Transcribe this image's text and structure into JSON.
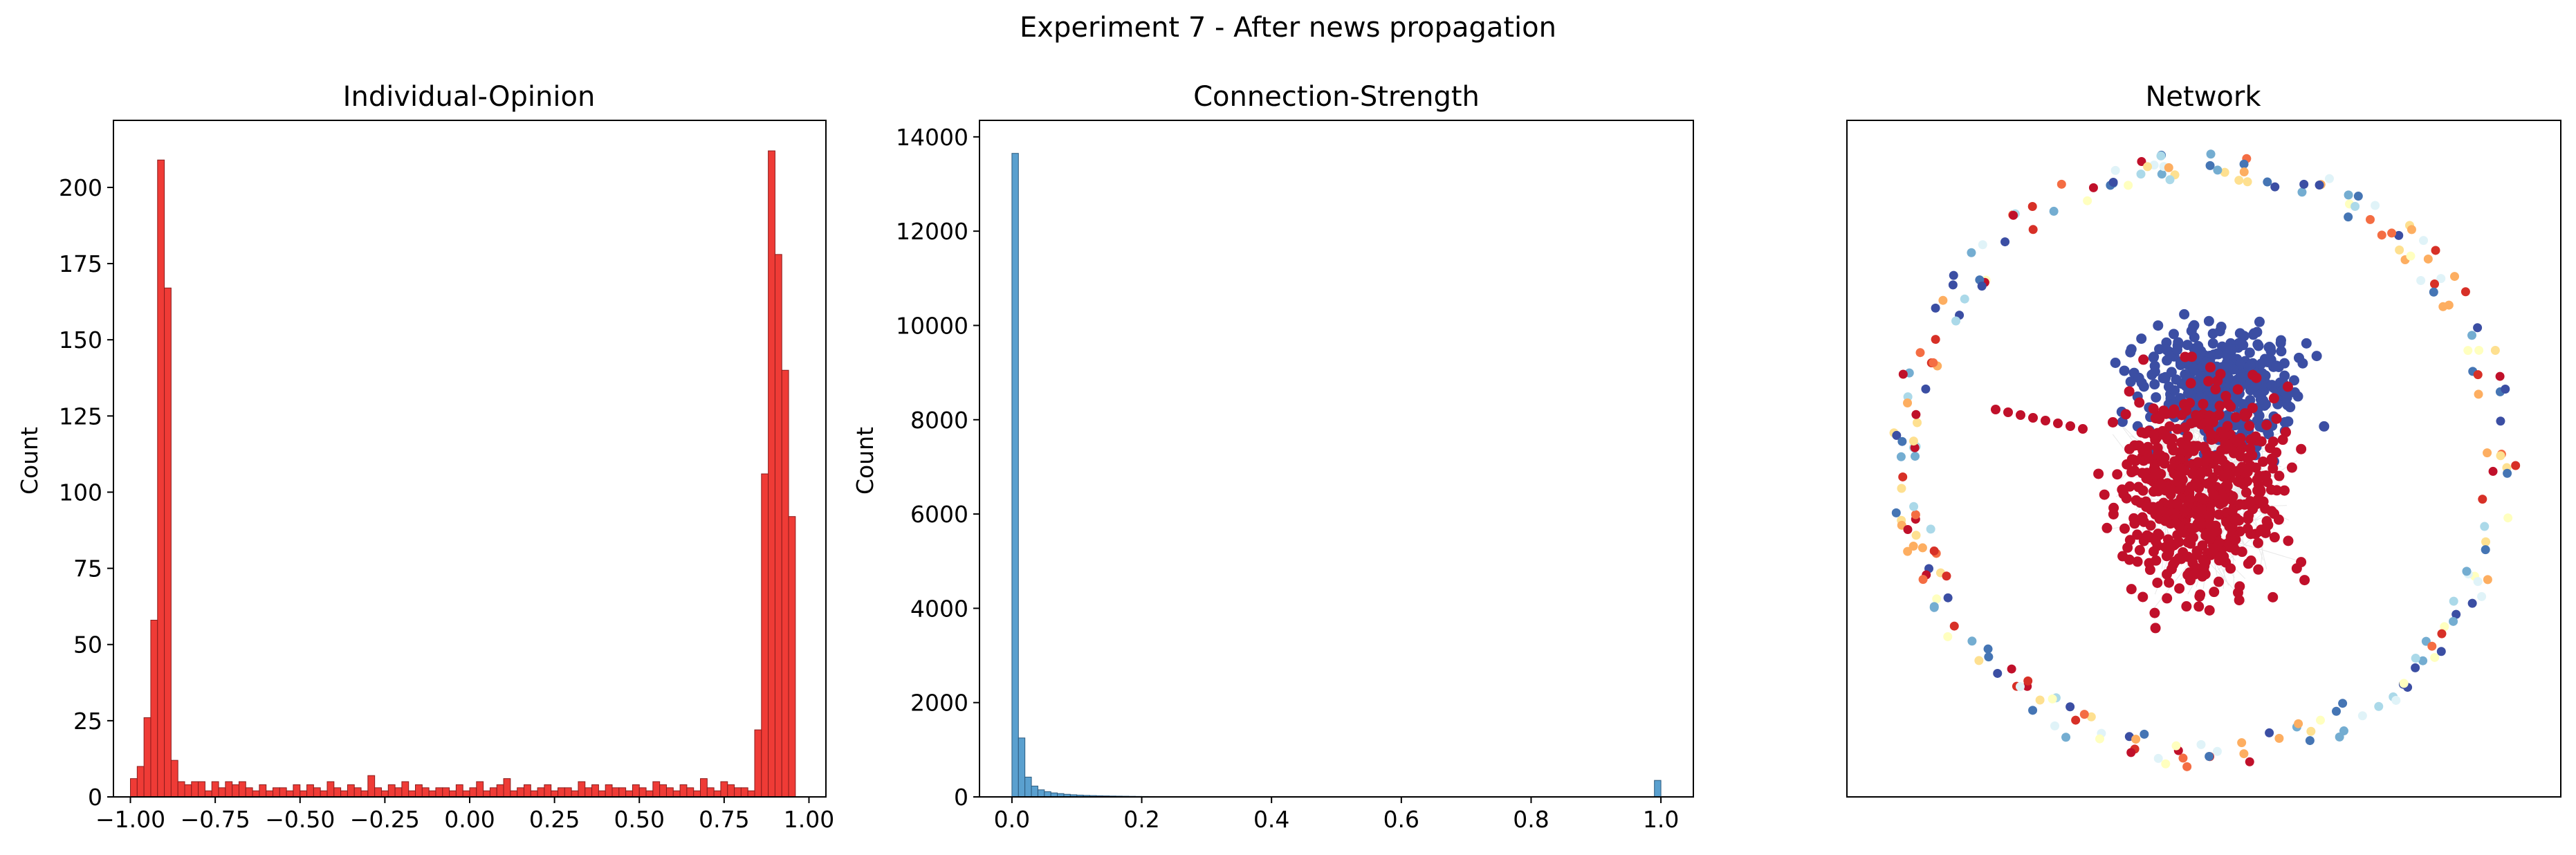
{
  "figure": {
    "title": "Experiment 7 - After news propagation"
  },
  "colors": {
    "opinion_bar": "#ef3b36",
    "strength_bar": "#5aa0cf",
    "polarized_red": "#c0102a",
    "polarized_blue": "#3b4ea3"
  },
  "chart_data": [
    {
      "type": "bar",
      "title": "Individual-Opinion",
      "xlabel": "",
      "ylabel": "Count",
      "xlim": [
        -1.05,
        1.05
      ],
      "ylim": [
        0,
        222
      ],
      "xticks": [
        "−1.00",
        "−0.75",
        "−0.50",
        "−0.25",
        "0.00",
        "0.25",
        "0.50",
        "0.75",
        "1.00"
      ],
      "yticks": [
        "0",
        "25",
        "50",
        "75",
        "100",
        "125",
        "150",
        "175",
        "200"
      ],
      "bin_start": -1.0,
      "bin_width": 0.02,
      "values": [
        6,
        10,
        26,
        58,
        209,
        167,
        12,
        5,
        4,
        5,
        5,
        2,
        5,
        3,
        5,
        4,
        5,
        3,
        2,
        4,
        2,
        3,
        3,
        2,
        4,
        2,
        4,
        3,
        2,
        5,
        3,
        2,
        4,
        3,
        2,
        7,
        3,
        2,
        4,
        3,
        5,
        2,
        4,
        3,
        2,
        3,
        3,
        2,
        4,
        2,
        3,
        5,
        2,
        3,
        4,
        6,
        2,
        3,
        4,
        2,
        3,
        4,
        2,
        3,
        3,
        2,
        5,
        3,
        4,
        2,
        4,
        3,
        3,
        2,
        4,
        3,
        2,
        5,
        4,
        3,
        2,
        4,
        3,
        2,
        6,
        3,
        2,
        5,
        4,
        3,
        3,
        2,
        22,
        106,
        212,
        178,
        140,
        92,
        0,
        0
      ],
      "grid": false
    },
    {
      "type": "bar",
      "title": "Connection-Strength",
      "xlabel": "",
      "ylabel": "Count",
      "xlim": [
        -0.05,
        1.05
      ],
      "ylim": [
        0,
        14350
      ],
      "xticks": [
        "0.0",
        "0.2",
        "0.4",
        "0.6",
        "0.8",
        "1.0"
      ],
      "yticks": [
        "0",
        "2000",
        "4000",
        "6000",
        "8000",
        "10000",
        "12000",
        "14000"
      ],
      "bin_start": 0.0,
      "bin_width": 0.01,
      "values": [
        13650,
        1250,
        420,
        230,
        150,
        110,
        85,
        70,
        55,
        45,
        38,
        32,
        28,
        24,
        21,
        18,
        16,
        14,
        12,
        10,
        9,
        8,
        7,
        6,
        5,
        5,
        4,
        4,
        3,
        3,
        3,
        2,
        2,
        2,
        2,
        2,
        2,
        2,
        1,
        1,
        1,
        1,
        1,
        1,
        1,
        1,
        1,
        1,
        1,
        1,
        1,
        1,
        1,
        1,
        1,
        1,
        1,
        1,
        1,
        1,
        1,
        1,
        1,
        1,
        1,
        1,
        1,
        1,
        1,
        1,
        1,
        1,
        1,
        1,
        1,
        1,
        1,
        1,
        1,
        1,
        1,
        1,
        1,
        1,
        1,
        1,
        1,
        1,
        1,
        1,
        1,
        1,
        1,
        1,
        1,
        1,
        1,
        1,
        1,
        350
      ],
      "grid": false
    },
    {
      "type": "scatter",
      "title": "Network",
      "xlabel": "",
      "ylabel": "",
      "axes": "off",
      "groups": [
        {
          "color": "#c0102a",
          "region": "core"
        },
        {
          "color": "#3b4ea3",
          "region": "core-upper"
        },
        {
          "color": "mixed",
          "region": "outer-ring"
        }
      ]
    }
  ]
}
